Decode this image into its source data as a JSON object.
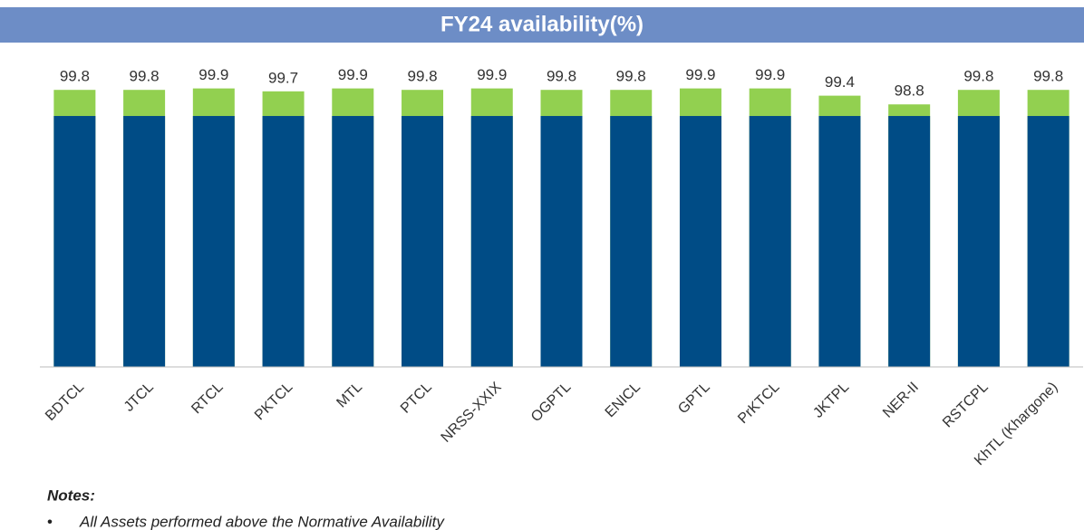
{
  "chart_data": {
    "type": "bar",
    "title": "FY24 availability(%)",
    "categories": [
      "BDTCL",
      "JTCL",
      "RTCL",
      "PKTCL",
      "MTL",
      "PTCL",
      "NRSS-XXIX",
      "OGPTL",
      "ENICL",
      "GPTL",
      "PrKTCL",
      "JKTPL",
      "NER-II",
      "RSTCPL",
      "KhTL (Khargone)"
    ],
    "series": [
      {
        "color": "#92d050",
        "data_labels": true,
        "values": [
          99.8,
          99.8,
          99.9,
          99.7,
          99.9,
          99.8,
          99.9,
          99.8,
          99.8,
          99.9,
          99.9,
          99.4,
          98.8,
          99.8,
          99.8
        ]
      },
      {
        "color": "#004c86",
        "data_labels": false,
        "values": [
          98,
          98,
          98,
          98,
          98,
          98,
          98,
          98,
          98,
          98,
          98,
          98,
          98,
          98,
          98
        ]
      }
    ],
    "ylim": [
      80.7,
      100.5
    ]
  },
  "notes": {
    "heading": "Notes:",
    "items": [
      "All Assets performed above the Normative Availability"
    ]
  }
}
